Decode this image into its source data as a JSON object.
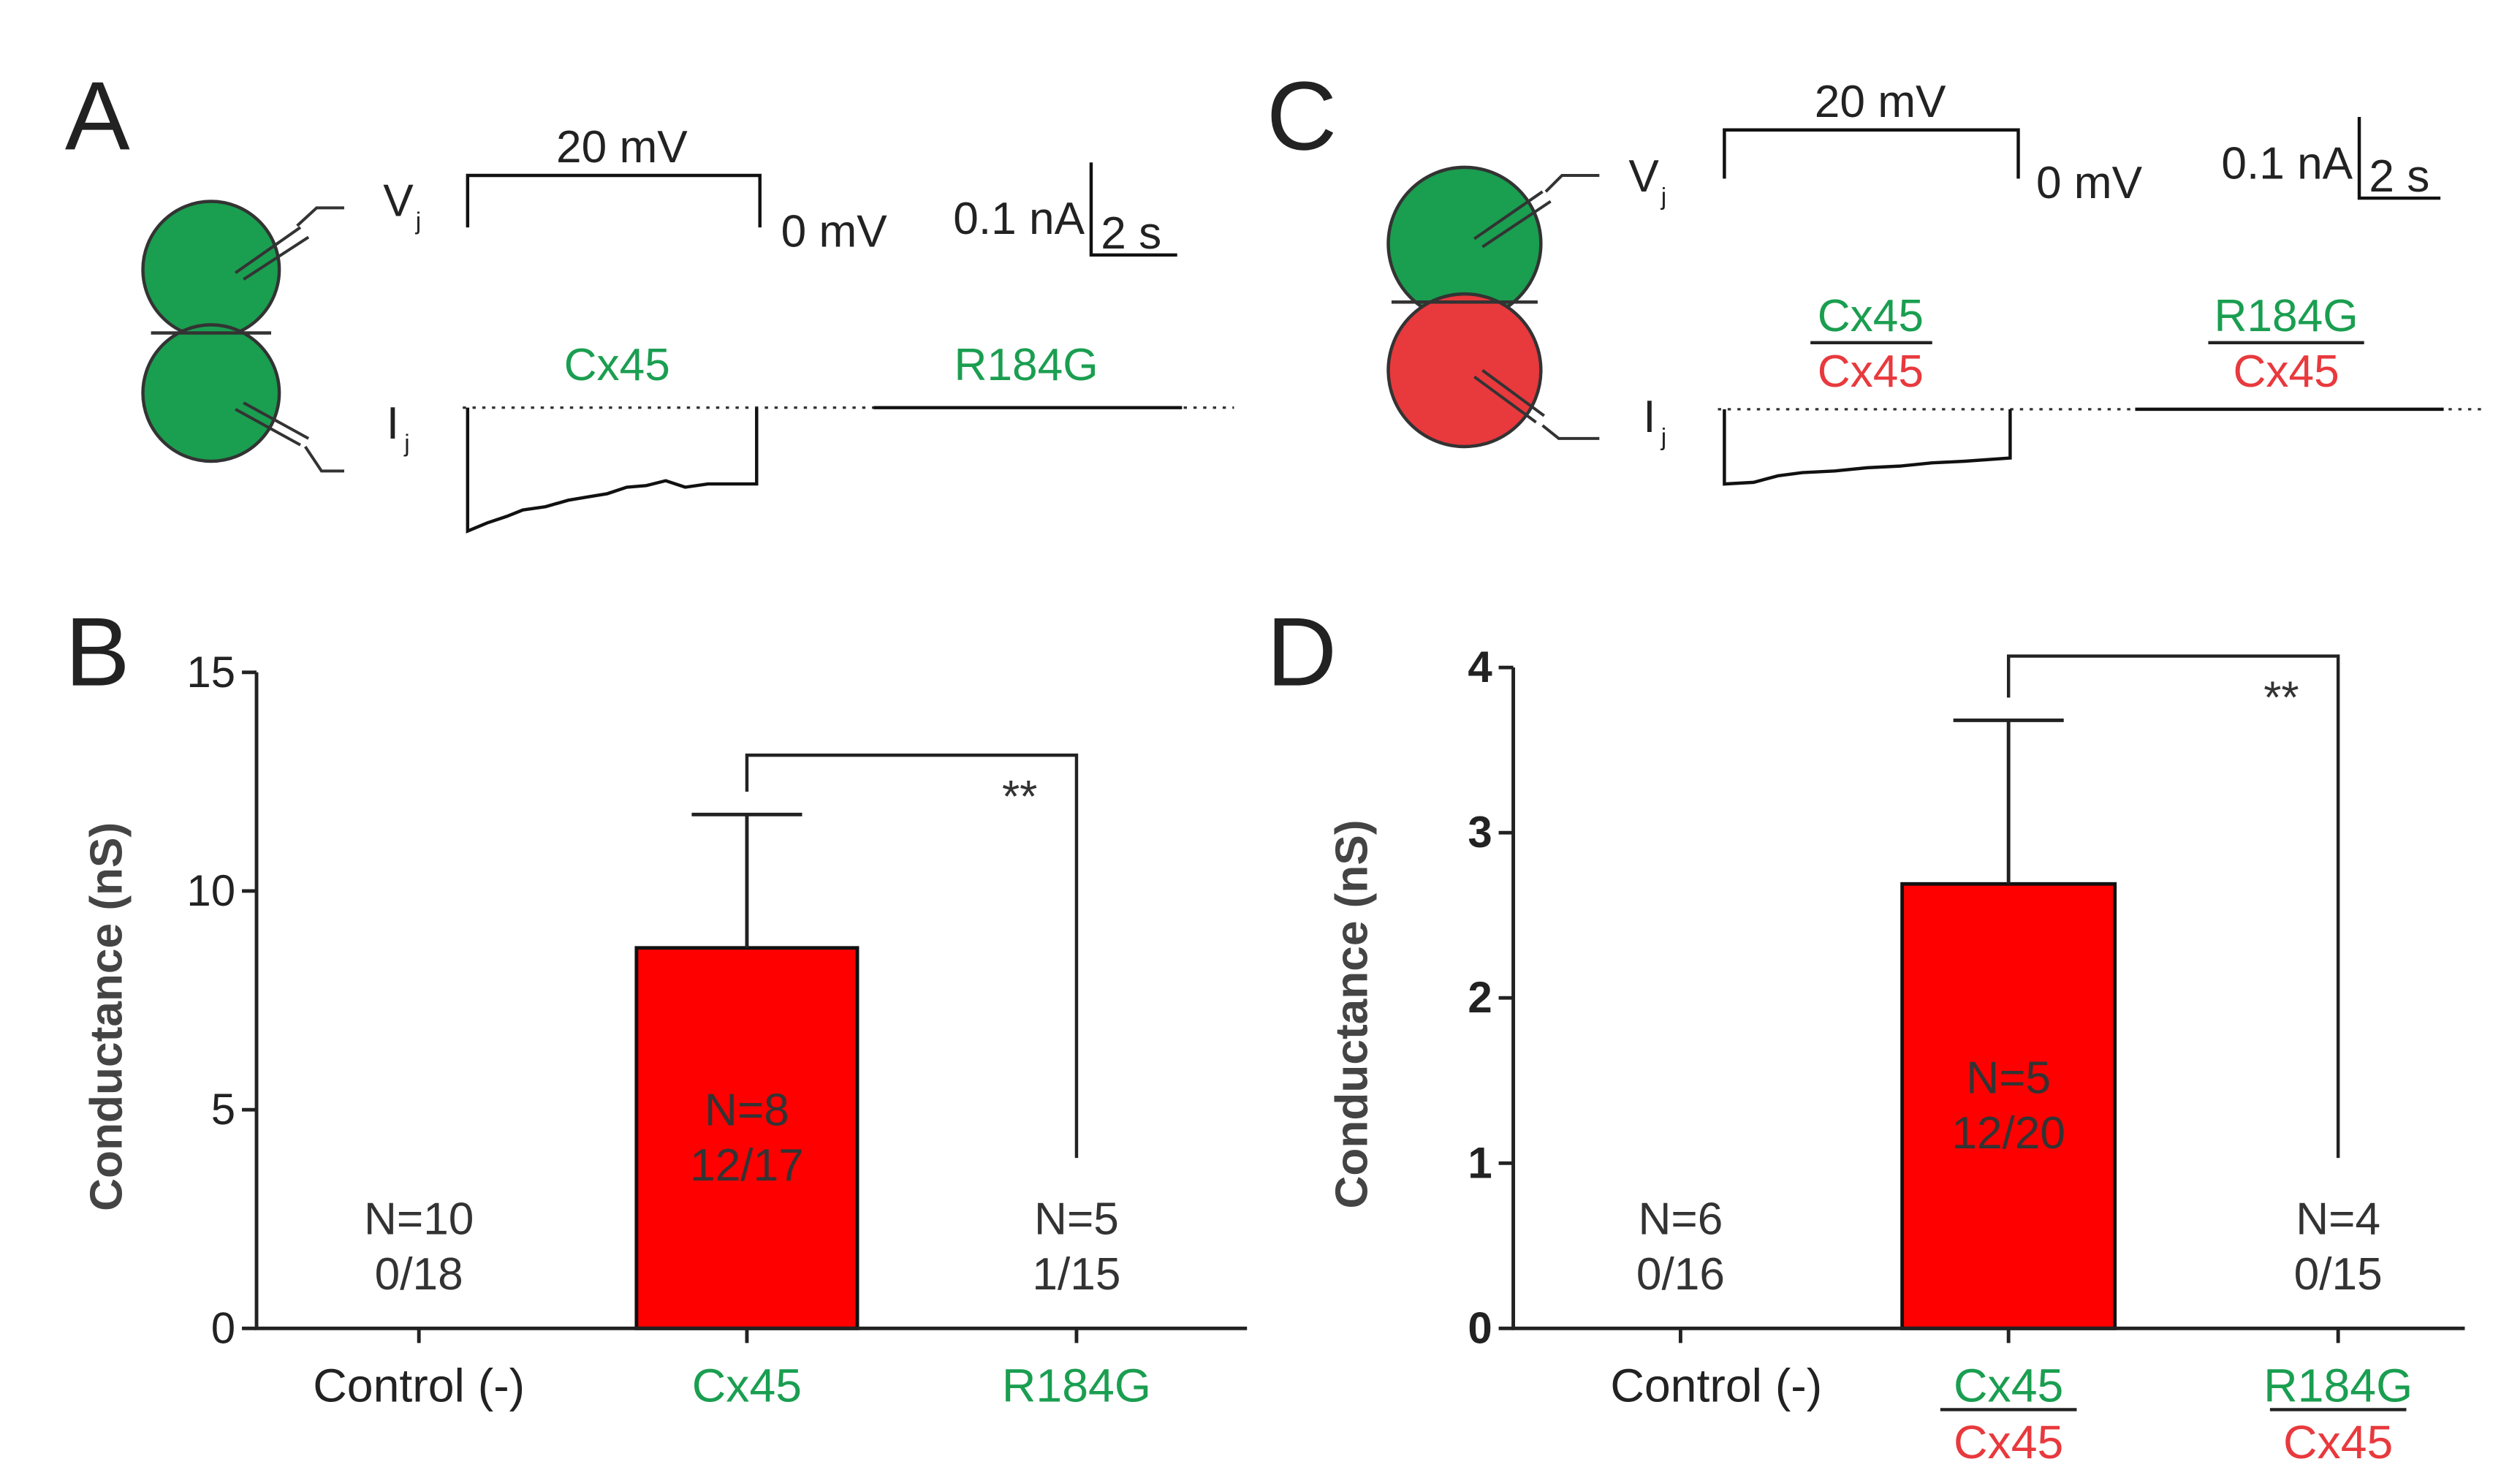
{
  "panels": [
    {
      "label": "A",
      "v_symbol": "V",
      "v_sub": "j",
      "i_symbol": "I",
      "i_sub": "j",
      "step": "20 mV",
      "zero": "0 mV",
      "scale_current": "0.1 nA",
      "scale_time": "2 s",
      "traces": [
        {
          "top": "Cx45"
        },
        {
          "top": "R184G"
        }
      ]
    },
    {
      "label": "C",
      "v_symbol": "V",
      "v_sub": "j",
      "i_symbol": "I",
      "i_sub": "j",
      "step": "20 mV",
      "zero": "0 mV",
      "scale_current": "0.1 nA",
      "scale_time": "2 s",
      "traces": [
        {
          "top": "Cx45",
          "bottom": "Cx45"
        },
        {
          "top": "R184G",
          "bottom": "Cx45"
        }
      ]
    }
  ],
  "chart_data": [
    {
      "type": "bar",
      "panel": "B",
      "ylabel": "Conductance (nS)",
      "categories": [
        "Control (-)",
        "Cx45",
        "R184G"
      ],
      "category_partners": [
        null,
        null,
        null
      ],
      "category_colors": [
        "#222222",
        "#1a9e50",
        "#1a9e50"
      ],
      "values": [
        0,
        8.7,
        0
      ],
      "errors": [
        null,
        3.05,
        null
      ],
      "color": "#ff0000",
      "ylim": [
        0,
        15
      ],
      "yticks": [
        0,
        5,
        10,
        15
      ],
      "annotations": [
        [
          "N=10",
          "0/18"
        ],
        [
          "N=8",
          "12/17"
        ],
        [
          "N=5",
          "1/15"
        ]
      ],
      "significance": "**"
    },
    {
      "type": "bar",
      "panel": "D",
      "ylabel": "Conductance (nS)",
      "categories": [
        "Control (-)",
        "Cx45",
        "R184G"
      ],
      "category_partners": [
        null,
        "Cx45",
        "Cx45"
      ],
      "category_colors": [
        "#222222",
        "#1a9e50",
        "#1a9e50"
      ],
      "partner_color": "#e8393d",
      "values": [
        0,
        2.69,
        0
      ],
      "errors": [
        null,
        0.99,
        null
      ],
      "color": "#ff0000",
      "ylim": [
        0,
        4
      ],
      "yticks": [
        0,
        1,
        2,
        3,
        4
      ],
      "annotations": [
        [
          "N=6",
          "0/16"
        ],
        [
          "N=5",
          "12/20"
        ],
        [
          "N=4",
          "0/15"
        ]
      ],
      "significance": "**"
    }
  ]
}
